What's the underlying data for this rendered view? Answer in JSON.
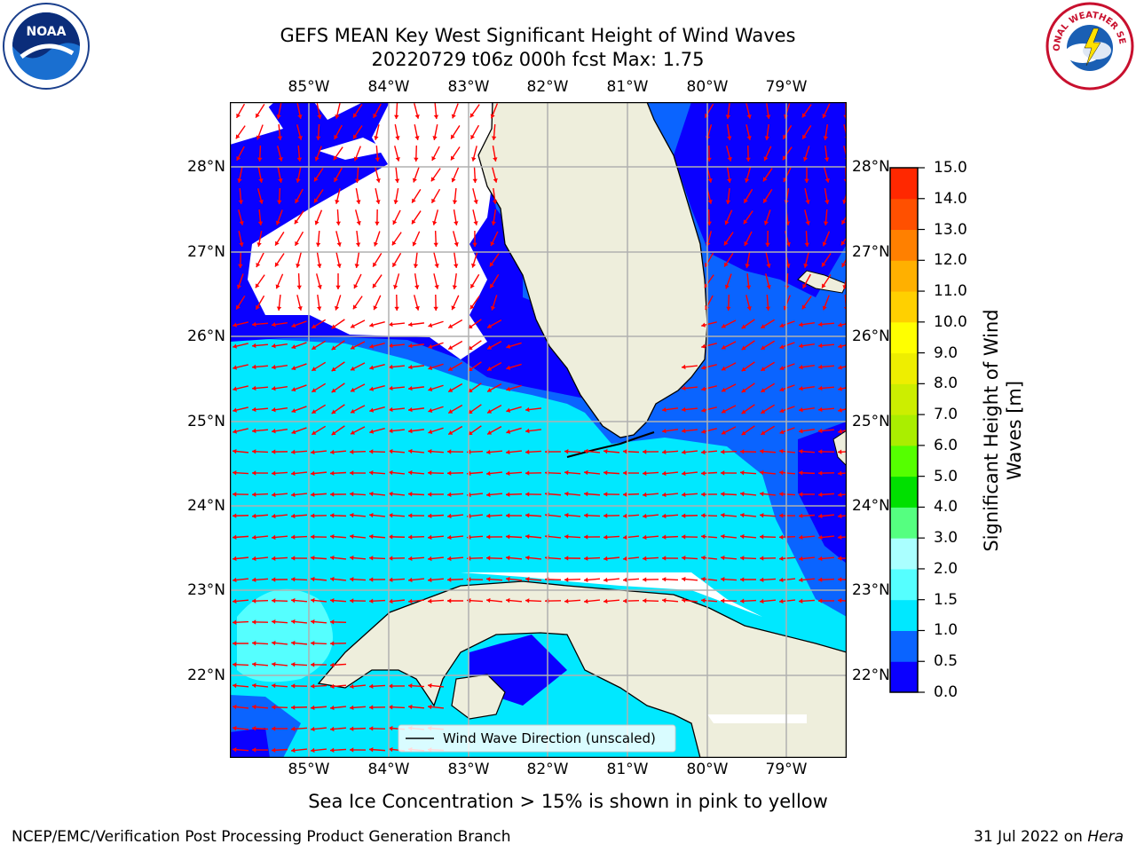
{
  "title_line1": "GEFS MEAN Key West Significant Height of Wind Waves",
  "title_line2": "20220729 t06z 000h fcst   Max: 1.75",
  "lon_labels": [
    "85°W",
    "84°W",
    "83°W",
    "82°W",
    "81°W",
    "80°W",
    "79°W"
  ],
  "lat_labels": [
    "28°N",
    "27°N",
    "26°N",
    "25°N",
    "24°N",
    "23°N",
    "22°N"
  ],
  "legend_label": "Wind Wave Direction (unscaled)",
  "colorbar": {
    "label": "Significant Height of Wind Waves [m]",
    "ticks": [
      "0.0",
      "0.5",
      "1.0",
      "1.5",
      "2.0",
      "3.0",
      "4.0",
      "5.0",
      "6.0",
      "7.0",
      "8.0",
      "9.0",
      "10.0",
      "11.0",
      "12.0",
      "13.0",
      "14.0",
      "15.0"
    ],
    "colors": [
      "#0a00ff",
      "#0a64ff",
      "#00e8ff",
      "#55ffff",
      "#aaffff",
      "#55ff80",
      "#00e000",
      "#55ff00",
      "#aaee00",
      "#ccee00",
      "#eeee00",
      "#ffff00",
      "#ffd000",
      "#ffb000",
      "#ff8000",
      "#ff5000",
      "#ff2800"
    ]
  },
  "note": "Sea Ice Concentration > 15% is shown in pink to yellow",
  "footer_left": "NCEP/EMC/Verification Post Processing Product Generation Branch",
  "footer_right_date": "31 Jul 2022 on",
  "footer_right_host": "Hera",
  "colors": {
    "land": "#eeeedc",
    "wave_0_05": "#0a00ff",
    "wave_05_10": "#0a64ff",
    "wave_10_15": "#00e8ff",
    "wave_15_20": "#55ffff",
    "arrow": "#ff0000"
  },
  "logos": {
    "noaa_text": "NOAA",
    "nws_text": "NATIONAL WEATHER SERVICE"
  }
}
